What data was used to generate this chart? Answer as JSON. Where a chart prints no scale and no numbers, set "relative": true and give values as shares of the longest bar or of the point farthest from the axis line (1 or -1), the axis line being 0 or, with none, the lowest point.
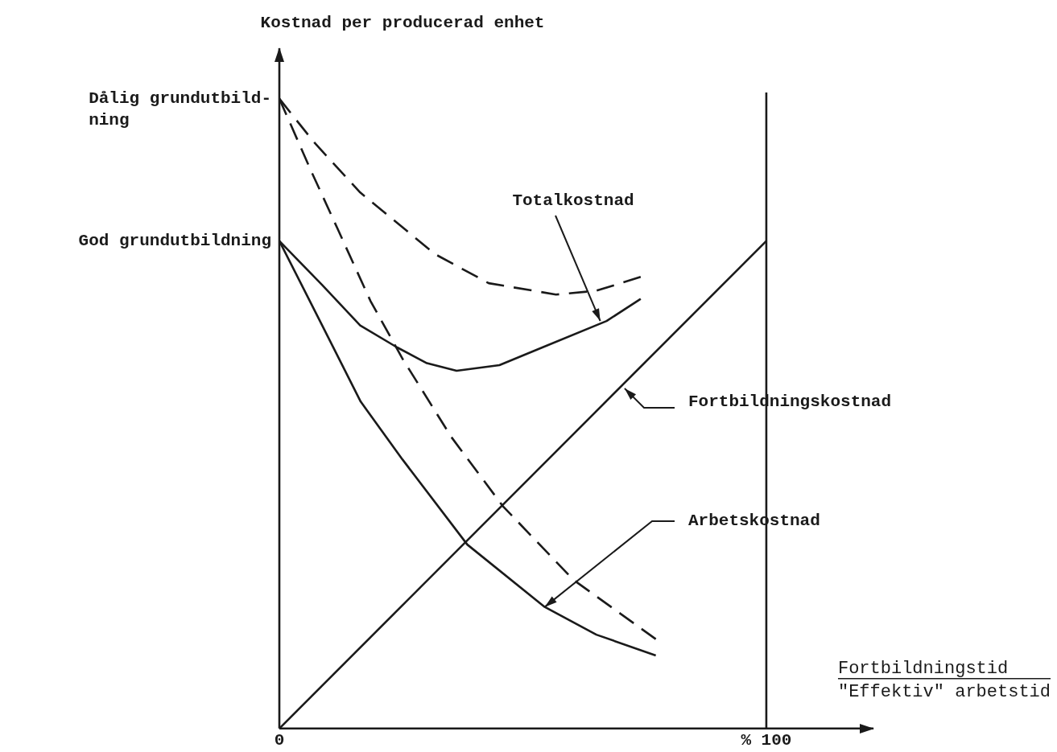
{
  "chart_data": {
    "type": "line",
    "relative": true,
    "ylabel": "Kostnad per producerad enhet",
    "xlabel": "Fortbildningstid\n\"Effektiv\" arbetstid",
    "xlim": [
      0,
      122
    ],
    "xticks": [
      0,
      {
        "value": 100,
        "label": "% 100"
      }
    ],
    "ref_lines": [
      {
        "axis": "x",
        "value": 100,
        "color": "#1a1a1a"
      }
    ],
    "series": [
      {
        "color": "#1a1a1a",
        "line_style": "dashed",
        "x": [
          0,
          7.1,
          16.6,
          32.0,
          43.0,
          56.8,
          65.1,
          74.2
        ],
        "values": [
          1.0,
          0.931,
          0.851,
          0.753,
          0.707,
          0.689,
          0.695,
          0.717
        ]
      },
      {
        "color": "#1a1a1a",
        "line_style": "solid",
        "x": [
          0,
          8.8,
          16.6,
          24.2,
          30.3,
          36.4,
          45.2,
          54.0,
          67.2,
          74.2
        ],
        "values": [
          0.774,
          0.704,
          0.64,
          0.605,
          0.58,
          0.568,
          0.577,
          0.605,
          0.647,
          0.682
        ]
      },
      {
        "color": "#1a1a1a",
        "line_style": "dashed",
        "x": [
          0,
          6.3,
          12.1,
          18.7,
          25.3,
          35.3,
          45.9,
          60.4,
          77.3
        ],
        "values": [
          1.0,
          0.889,
          0.791,
          0.679,
          0.587,
          0.463,
          0.353,
          0.236,
          0.142
        ]
      },
      {
        "color": "#1a1a1a",
        "line_style": "solid",
        "x": [
          0,
          8.8,
          16.7,
          25.3,
          38.6,
          54.5,
          65.1,
          77.3
        ],
        "values": [
          0.774,
          0.64,
          0.519,
          0.427,
          0.292,
          0.193,
          0.149,
          0.116
        ]
      },
      {
        "color": "#1a1a1a",
        "line_style": "solid",
        "x": [
          0,
          100
        ],
        "values": [
          0,
          0.774
        ]
      }
    ],
    "annotations": [
      {
        "text": "Dålig grundutbild-\nning",
        "x": 0,
        "y": 1.0
      },
      {
        "text": "God grundutbildning",
        "x": 0,
        "y": 0.774
      },
      {
        "text": "Totalkostnad",
        "x": 65.9,
        "y": 0.647
      },
      {
        "text": "Fortbildningskostnad",
        "x": 70.9,
        "y": 0.54
      },
      {
        "text": "Arbetskostnad",
        "x": 54.5,
        "y": 0.193
      }
    ]
  }
}
